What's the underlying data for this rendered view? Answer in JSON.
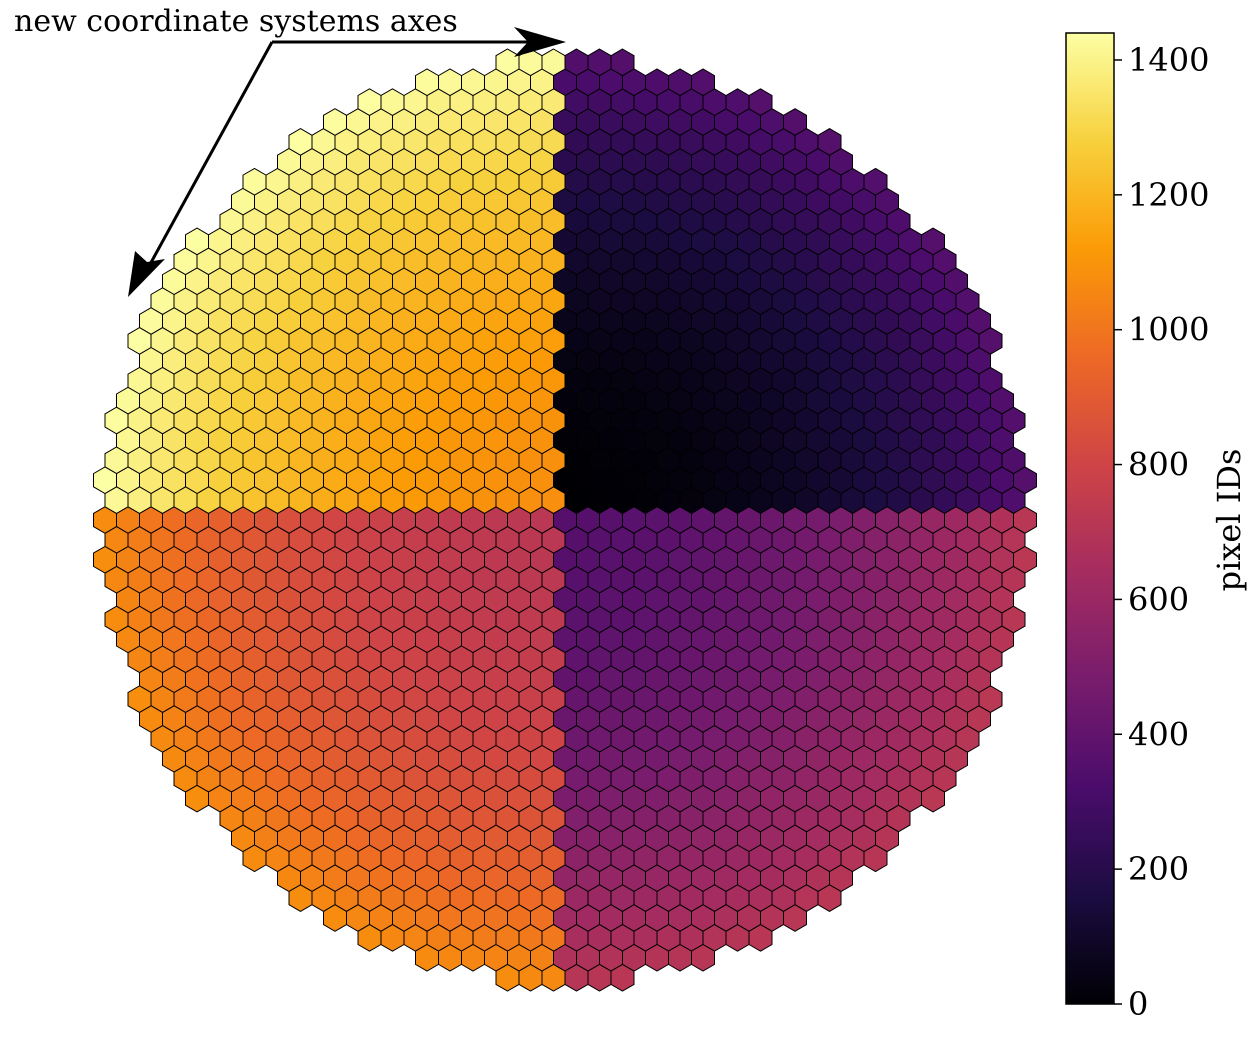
{
  "chart_data": {
    "type": "heatmap",
    "subtype": "hexagonal camera pixel map",
    "pixel_count": 1440,
    "value_range": [
      0,
      1440
    ],
    "colormap": "inferno",
    "colormap_stops": [
      "#000004",
      "#1b0c41",
      "#4a0c6b",
      "#781c6d",
      "#a52c60",
      "#cf4446",
      "#ed6925",
      "#fb9b06",
      "#f7d13d",
      "#fcffa4"
    ],
    "quadrants": [
      {
        "region": "top-right",
        "id_range": [
          0,
          359
        ]
      },
      {
        "region": "bottom-right",
        "id_range": [
          360,
          719
        ]
      },
      {
        "region": "bottom-left",
        "id_range": [
          720,
          1079
        ]
      },
      {
        "region": "top-left",
        "id_range": [
          1080,
          1439
        ]
      }
    ],
    "annotation": "new coordinate systems axes",
    "colorbar": {
      "label": "pixel IDs",
      "ticks": [
        0,
        200,
        400,
        600,
        800,
        1000,
        1200,
        1400
      ],
      "tick_labels": [
        "0",
        "200",
        "400",
        "600",
        "800",
        "1000",
        "1200",
        "1400"
      ]
    }
  }
}
